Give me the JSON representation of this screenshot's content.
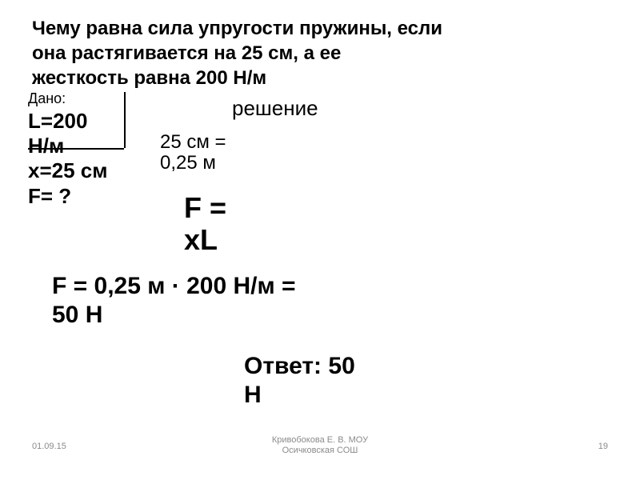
{
  "problem": {
    "line1": "Чему равна сила упругости пружины, если",
    "line2": "она растягивается на 25 см, а ее",
    "line3": "жесткость равна 200 Н/м"
  },
  "dano_label": "Дано:",
  "given": {
    "L_line1": "L=200",
    "L_line2": "Н/м",
    "x": "x=25 см",
    "F": "F= ?"
  },
  "solution_label": "решение",
  "conversion": {
    "line1": "25 см =",
    "line2": "0,25 м"
  },
  "formula": {
    "line1": "F =",
    "line2": "xL"
  },
  "calculation": {
    "line1": "F = 0,25 м · 200 Н/м =",
    "line2": "50 Н"
  },
  "answer": {
    "line1": "Ответ: 50",
    "line2": "Н"
  },
  "footer": {
    "date": "01.09.15",
    "author_line1": "Кривобокова Е. В. МОУ",
    "author_line2": "Осичковская СОШ",
    "page": "19"
  },
  "styling": {
    "background_color": "#ffffff",
    "text_color": "#000000",
    "footer_color": "#8b8b8b",
    "problem_fontsize": 24,
    "given_fontsize": 26,
    "formula_fontsize": 36,
    "calculation_fontsize": 30,
    "answer_fontsize": 30,
    "footer_fontsize": 11
  }
}
